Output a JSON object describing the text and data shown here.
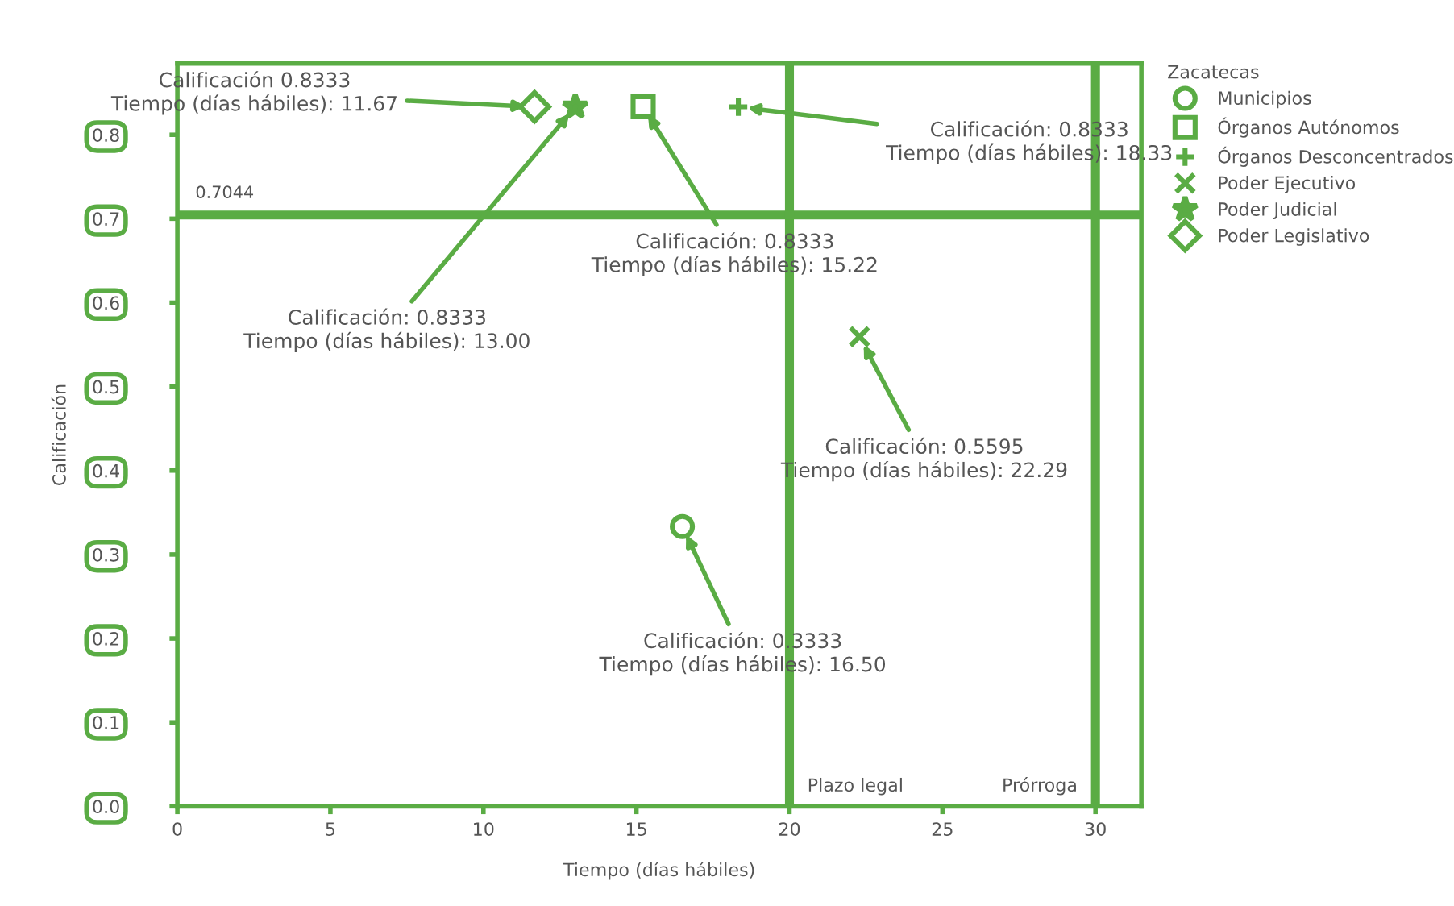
{
  "chart_data": {
    "type": "scatter",
    "xlabel": "Tiempo (días hábiles)",
    "ylabel": "Calificación",
    "legend_title": "Zacatecas",
    "series": [
      {
        "name": "Municipios",
        "color": "#5aac44",
        "marker": "circle",
        "x": [
          16.5
        ],
        "values": [
          0.3333
        ]
      },
      {
        "name": "Órganos Autónomos",
        "color": "#5aac44",
        "marker": "square",
        "x": [
          15.22
        ],
        "values": [
          0.8333
        ]
      },
      {
        "name": "Órganos Desconcentrados",
        "color": "#5aac44",
        "marker": "plus",
        "x": [
          18.33
        ],
        "values": [
          0.8333
        ]
      },
      {
        "name": "Poder Ejecutivo",
        "color": "#5aac44",
        "marker": "cross",
        "x": [
          22.29
        ],
        "values": [
          0.5595
        ]
      },
      {
        "name": "Poder Judicial",
        "color": "#5aac44",
        "marker": "star",
        "x": [
          13.0
        ],
        "values": [
          0.8333
        ]
      },
      {
        "name": "Poder Legislativo",
        "color": "#5aac44",
        "marker": "diamond",
        "x": [
          11.67
        ],
        "values": [
          0.8333
        ]
      }
    ],
    "annotations": [
      {
        "text": "Calificación 0.8333\nTiempo (días hábiles): 11.67",
        "x": 11.67,
        "y": 0.8333
      },
      {
        "text": "Calificación: 0.8333\nTiempo (días hábiles): 13.00",
        "x": 13.0,
        "y": 0.8333
      },
      {
        "text": "Calificación: 0.8333\nTiempo (días hábiles): 15.22",
        "x": 15.22,
        "y": 0.8333
      },
      {
        "text": "Calificación: 0.8333\nTiempo (días hábiles): 18.33",
        "x": 18.33,
        "y": 0.8333
      },
      {
        "text": "Calificación: 0.5595\nTiempo (días hábiles): 22.29",
        "x": 22.29,
        "y": 0.5595
      },
      {
        "text": "Calificación: 0.3333\nTiempo (días hábiles): 16.50",
        "x": 16.5,
        "y": 0.3333
      }
    ],
    "ref_lines": [
      {
        "axis": "y",
        "value": 0.7044,
        "label": "0.7044",
        "color": "#5aac44"
      },
      {
        "axis": "x",
        "value": 20,
        "label": "Plazo legal",
        "color": "#5aac44"
      },
      {
        "axis": "x",
        "value": 30,
        "label": "Prórroga",
        "color": "#5aac44"
      }
    ],
    "xlim": [
      0,
      31.5
    ],
    "ylim": [
      0,
      0.885
    ],
    "xticks": [
      0,
      5,
      10,
      15,
      20,
      25,
      30
    ],
    "yticks": [
      {
        "value": 0,
        "label": "0.0"
      },
      {
        "value": 0.1,
        "label": "0.1"
      },
      {
        "value": 0.2,
        "label": "0.2"
      },
      {
        "value": 0.3,
        "label": "0.3"
      },
      {
        "value": 0.4,
        "label": "0.4"
      },
      {
        "value": 0.5,
        "label": "0.5"
      },
      {
        "value": 0.6,
        "label": "0.6"
      },
      {
        "value": 0.7,
        "label": "0.7"
      },
      {
        "value": 0.8,
        "label": "0.8"
      }
    ],
    "grid": false,
    "legend": "top right"
  }
}
